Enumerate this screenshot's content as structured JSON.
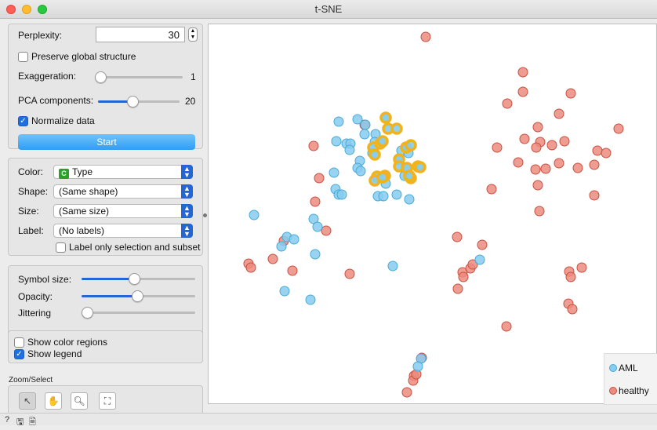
{
  "window": {
    "title": "t-SNE"
  },
  "optimization": {
    "perplexity_label": "Perplexity:",
    "perplexity_value": "30",
    "preserve_label": "Preserve global structure",
    "exaggeration_label": "Exaggeration:",
    "exaggeration_value": "1",
    "exaggeration_fraction": 0.0,
    "pca_label": "PCA components:",
    "pca_value": "20",
    "pca_fraction": 0.42,
    "normalize_label": "Normalize data",
    "start_label": "Start"
  },
  "attributes": {
    "color_label": "Color:",
    "color_value": "Type",
    "color_icon": "C",
    "shape_label": "Shape:",
    "shape_value": "(Same shape)",
    "size_label": "Size:",
    "size_value": "(Same size)",
    "label_label": "Label:",
    "label_value": "(No labels)",
    "label_only_selection": "Label only selection and subset"
  },
  "appearance": {
    "symbol_size_label": "Symbol size:",
    "symbol_size_fraction": 0.46,
    "opacity_label": "Opacity:",
    "opacity_fraction": 0.49,
    "jittering_label": "Jittering",
    "jittering_fraction": 0.0
  },
  "display": {
    "show_color_regions": "Show color regions",
    "show_legend": "Show legend"
  },
  "zoom": {
    "label": "Zoom/Select",
    "tools": [
      "pointer-icon",
      "hand-pan-icon",
      "magnifier-icon",
      "fit-frame-icon"
    ]
  },
  "status_icons": [
    "help-icon",
    "save-icon",
    "report-icon"
  ],
  "legend": {
    "items": [
      {
        "label": "AML",
        "color": "#86cdf0"
      },
      {
        "label": "healthy",
        "color": "#ec8b7f"
      }
    ]
  },
  "colors": {
    "aml": "#86cdf0",
    "aml_stroke": "#4aa9d6",
    "healthy": "#ec8b7f",
    "healthy_stroke": "#c9503f",
    "selection": "#f2b21b",
    "accent": "#2466d6"
  }
}
